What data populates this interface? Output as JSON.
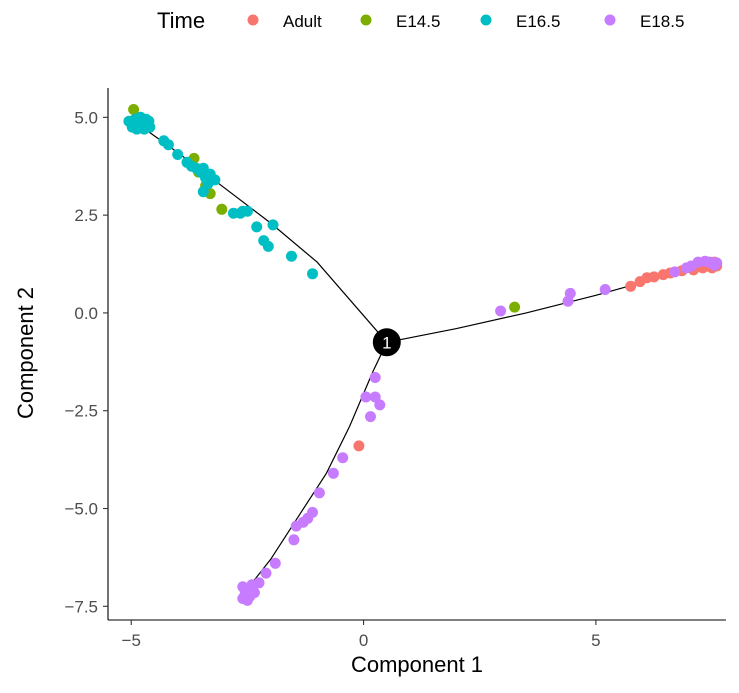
{
  "chart_data": {
    "type": "scatter",
    "xlabel": "Component 1",
    "ylabel": "Component 2",
    "xlim": [
      -5.5,
      7.8
    ],
    "ylim": [
      -7.85,
      5.75
    ],
    "x_ticks": [
      -5,
      0,
      5
    ],
    "x_tick_labels": [
      "−5",
      "0",
      "5"
    ],
    "y_ticks": [
      -7.5,
      -5.0,
      -2.5,
      0.0,
      2.5,
      5.0
    ],
    "y_tick_labels": [
      "−7.5",
      "−5.0",
      "−2.5",
      "0.0",
      "2.5",
      "5.0"
    ],
    "grid": false,
    "legend": {
      "title": "Time",
      "position": "top",
      "entries": [
        {
          "label": "Adult",
          "color": "#F8766D"
        },
        {
          "label": "E14.5",
          "color": "#7CAE00"
        },
        {
          "label": "E16.5",
          "color": "#00BFC4"
        },
        {
          "label": "E18.5",
          "color": "#C77CFF"
        }
      ]
    },
    "branch_point": {
      "label": "1",
      "x": 0.5,
      "y": -0.75
    },
    "trajectory": [
      [
        [
          -5.0,
          4.95
        ],
        [
          -4.0,
          4.1
        ],
        [
          -3.0,
          3.2
        ],
        [
          -2.0,
          2.3
        ],
        [
          -1.0,
          1.3
        ],
        [
          0.5,
          -0.75
        ]
      ],
      [
        [
          0.5,
          -0.75
        ],
        [
          2.0,
          -0.4
        ],
        [
          3.5,
          0.0
        ],
        [
          5.0,
          0.45
        ],
        [
          6.2,
          0.85
        ],
        [
          7.5,
          1.2
        ]
      ],
      [
        [
          0.5,
          -0.75
        ],
        [
          0.2,
          -1.5
        ],
        [
          -0.3,
          -2.9
        ],
        [
          -0.8,
          -4.1
        ],
        [
          -1.4,
          -5.2
        ],
        [
          -2.0,
          -6.3
        ],
        [
          -2.6,
          -7.2
        ]
      ]
    ],
    "series": [
      {
        "name": "Adult",
        "color": "#F8766D",
        "points": [
          [
            -0.1,
            -3.4
          ],
          [
            5.75,
            0.68
          ],
          [
            5.95,
            0.8
          ],
          [
            6.1,
            0.9
          ],
          [
            6.25,
            0.92
          ],
          [
            6.45,
            0.98
          ],
          [
            6.6,
            1.02
          ],
          [
            6.85,
            1.08
          ],
          [
            7.1,
            1.1
          ],
          [
            7.3,
            1.15
          ],
          [
            7.4,
            1.2
          ],
          [
            7.45,
            1.28
          ],
          [
            7.5,
            1.15
          ],
          [
            7.55,
            1.3
          ],
          [
            7.6,
            1.2
          ]
        ]
      },
      {
        "name": "E14.5",
        "color": "#7CAE00",
        "points": [
          [
            -4.95,
            5.2
          ],
          [
            -4.7,
            4.85
          ],
          [
            -4.9,
            4.9
          ],
          [
            -3.65,
            3.95
          ],
          [
            -3.55,
            3.6
          ],
          [
            -3.4,
            3.25
          ],
          [
            -3.3,
            3.05
          ],
          [
            -3.05,
            2.65
          ],
          [
            3.25,
            0.15
          ]
        ]
      },
      {
        "name": "E16.5",
        "color": "#00BFC4",
        "points": [
          [
            -5.05,
            4.9
          ],
          [
            -4.98,
            4.75
          ],
          [
            -4.92,
            4.95
          ],
          [
            -4.88,
            4.7
          ],
          [
            -4.85,
            4.85
          ],
          [
            -4.8,
            5.0
          ],
          [
            -4.75,
            4.8
          ],
          [
            -4.72,
            4.7
          ],
          [
            -4.68,
            4.95
          ],
          [
            -4.62,
            4.9
          ],
          [
            -4.6,
            4.75
          ],
          [
            -4.3,
            4.4
          ],
          [
            -4.2,
            4.3
          ],
          [
            -4.0,
            4.05
          ],
          [
            -3.8,
            3.85
          ],
          [
            -3.7,
            3.75
          ],
          [
            -3.6,
            3.7
          ],
          [
            -3.5,
            3.6
          ],
          [
            -3.45,
            3.7
          ],
          [
            -3.4,
            3.45
          ],
          [
            -3.35,
            3.3
          ],
          [
            -3.3,
            3.55
          ],
          [
            -3.2,
            3.4
          ],
          [
            -3.45,
            3.1
          ],
          [
            -2.8,
            2.55
          ],
          [
            -2.6,
            2.6
          ],
          [
            -2.65,
            2.55
          ],
          [
            -2.5,
            2.6
          ],
          [
            -2.3,
            2.2
          ],
          [
            -2.15,
            1.85
          ],
          [
            -2.05,
            1.7
          ],
          [
            -1.95,
            2.25
          ],
          [
            -1.55,
            1.45
          ],
          [
            -1.1,
            1.0
          ]
        ]
      },
      {
        "name": "E18.5",
        "color": "#C77CFF",
        "points": [
          [
            0.25,
            -1.65
          ],
          [
            0.05,
            -2.15
          ],
          [
            0.25,
            -2.15
          ],
          [
            0.35,
            -2.35
          ],
          [
            0.15,
            -2.65
          ],
          [
            -0.45,
            -3.7
          ],
          [
            -0.65,
            -4.1
          ],
          [
            -0.95,
            -4.6
          ],
          [
            -1.1,
            -5.1
          ],
          [
            -1.2,
            -5.25
          ],
          [
            -1.3,
            -5.35
          ],
          [
            -1.45,
            -5.45
          ],
          [
            -1.5,
            -5.8
          ],
          [
            -1.9,
            -6.4
          ],
          [
            -2.1,
            -6.65
          ],
          [
            -2.25,
            -6.9
          ],
          [
            -2.4,
            -6.95
          ],
          [
            -2.5,
            -7.1
          ],
          [
            -2.55,
            -7.2
          ],
          [
            -2.6,
            -7.0
          ],
          [
            -2.45,
            -7.25
          ],
          [
            -2.5,
            -7.35
          ],
          [
            -2.6,
            -7.3
          ],
          [
            -2.35,
            -7.15
          ],
          [
            2.95,
            0.05
          ],
          [
            4.4,
            0.3
          ],
          [
            4.45,
            0.5
          ],
          [
            5.2,
            0.6
          ],
          [
            6.7,
            1.05
          ],
          [
            6.95,
            1.15
          ],
          [
            7.05,
            1.2
          ],
          [
            7.2,
            1.3
          ],
          [
            7.35,
            1.32
          ],
          [
            7.45,
            1.3
          ],
          [
            7.55,
            1.22
          ],
          [
            7.6,
            1.28
          ]
        ]
      }
    ]
  }
}
